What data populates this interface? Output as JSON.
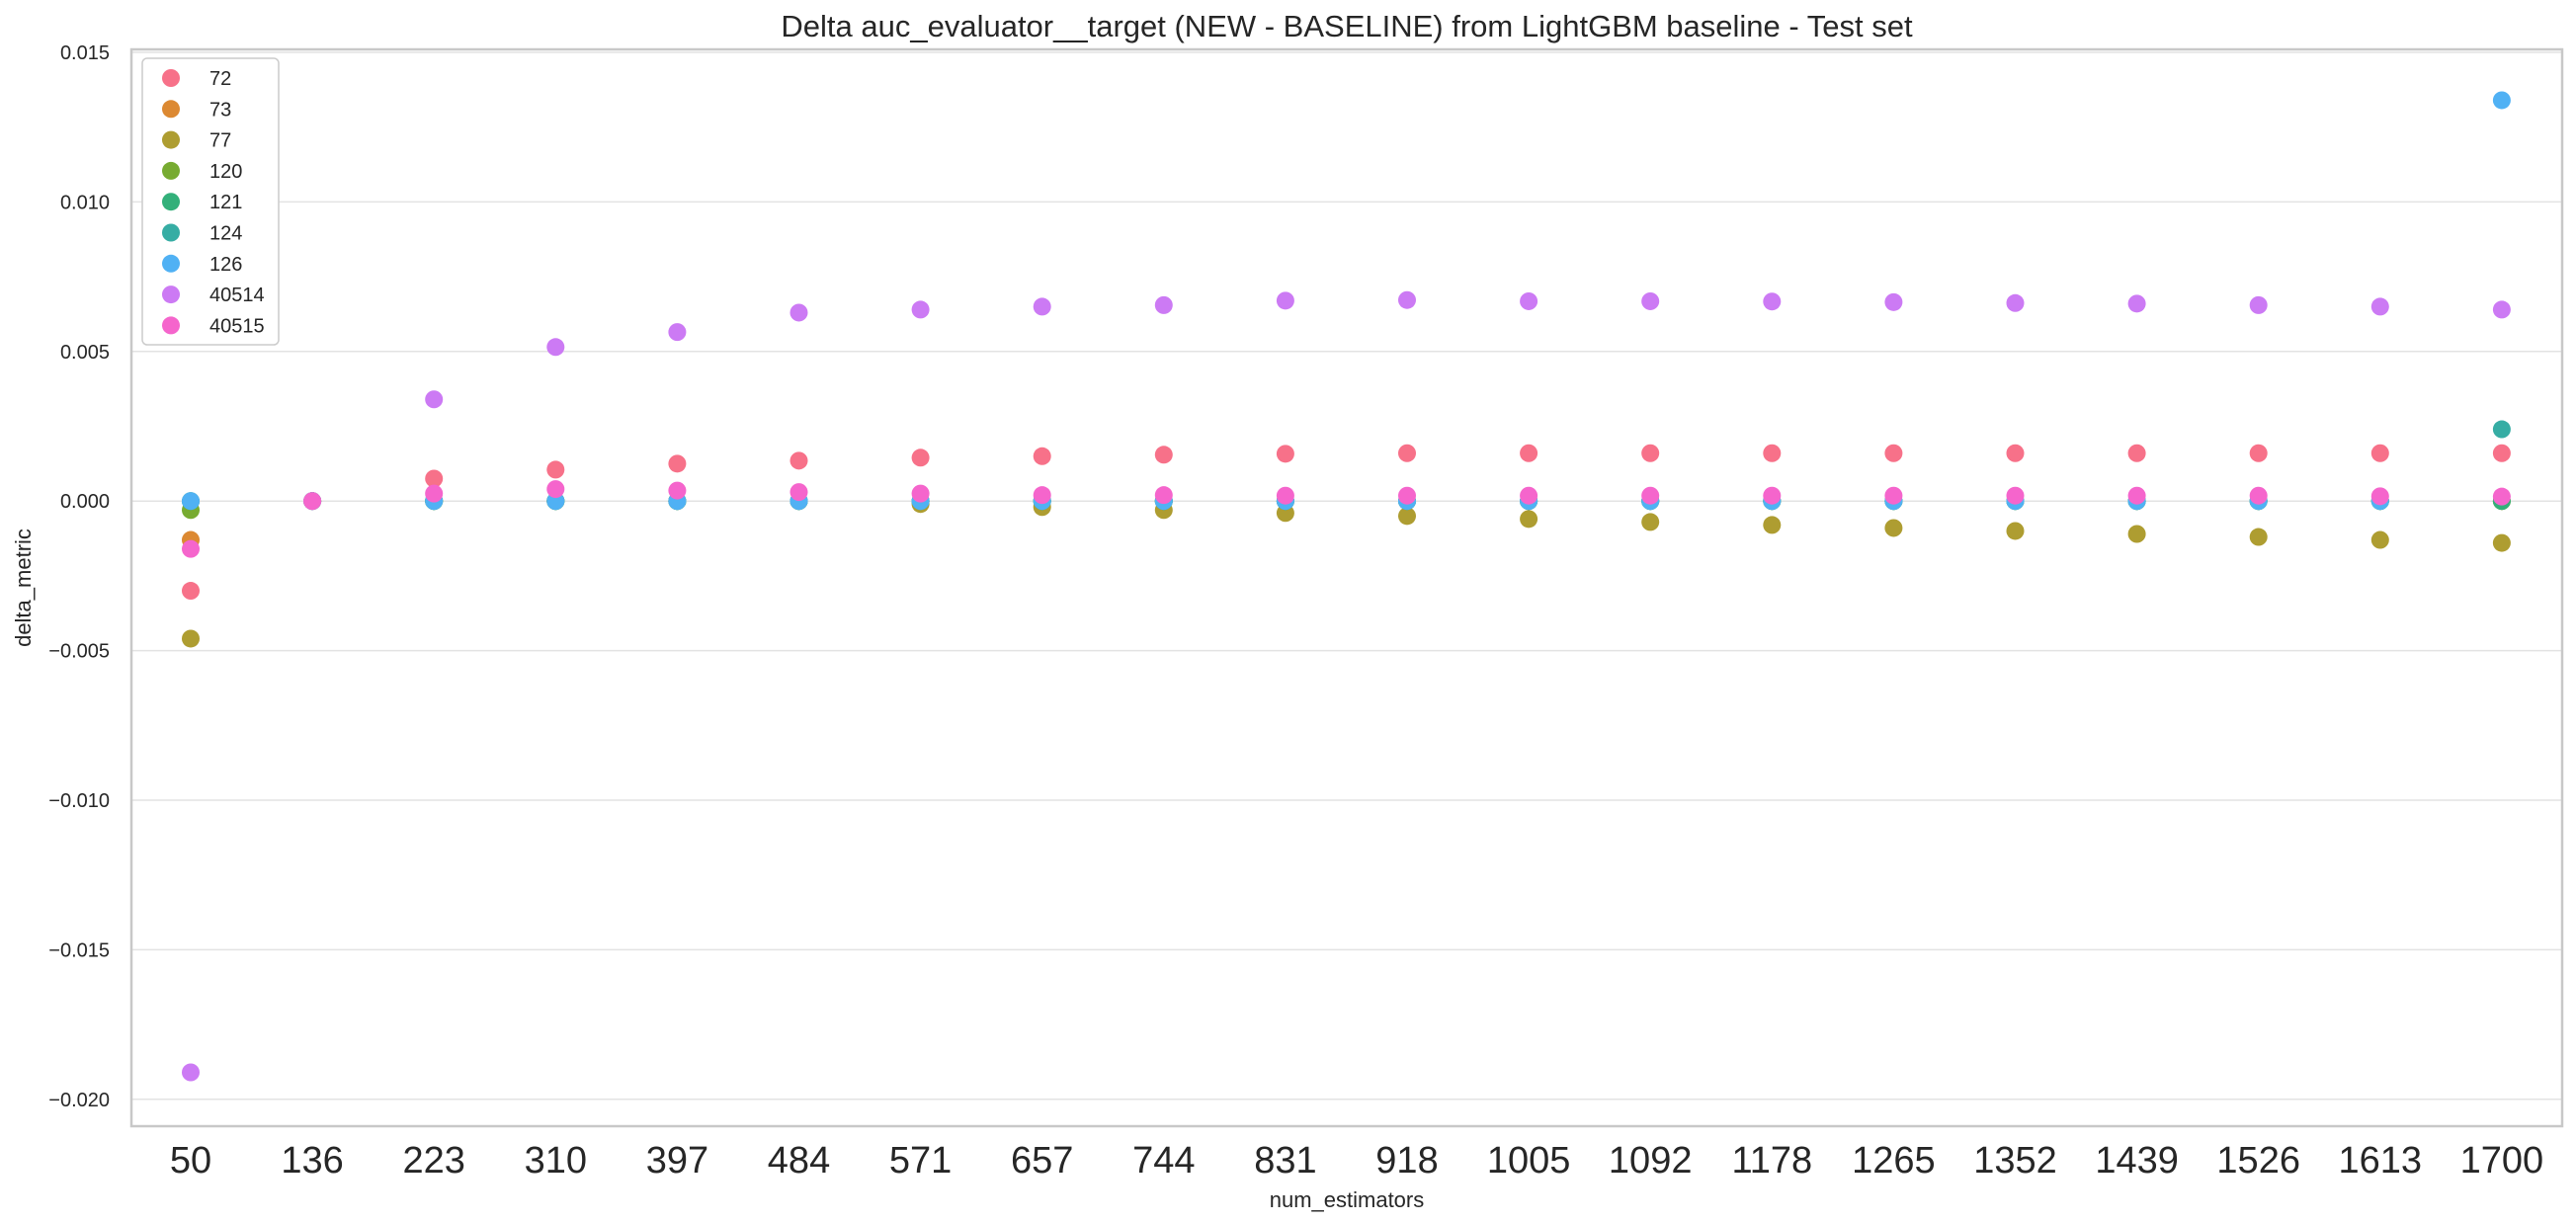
{
  "chart_data": {
    "type": "scatter",
    "title": "Delta auc_evaluator__target (NEW - BASELINE) from LightGBM baseline - Test set",
    "xlabel": "num_estimators",
    "ylabel": "delta_metric",
    "categories": [
      "50",
      "136",
      "223",
      "310",
      "397",
      "484",
      "571",
      "657",
      "744",
      "831",
      "918",
      "1005",
      "1092",
      "1178",
      "1265",
      "1352",
      "1439",
      "1526",
      "1613",
      "1700"
    ],
    "ylim": [
      -0.0209,
      0.0151
    ],
    "yticks": [
      0.015,
      0.01,
      0.005,
      0.0,
      -0.005,
      -0.01,
      -0.015,
      -0.02
    ],
    "ytick_labels": [
      "0.015",
      "0.010",
      "0.005",
      "0.000",
      "−0.005",
      "−0.010",
      "−0.015",
      "−0.020"
    ],
    "grid": "horizontal",
    "legend_position": "top-left",
    "series": [
      {
        "name": "72",
        "color": "#f77189",
        "values": [
          -0.003,
          0.0,
          0.00075,
          0.00105,
          0.00125,
          0.00135,
          0.00145,
          0.0015,
          0.00155,
          0.00158,
          0.0016,
          0.0016,
          0.0016,
          0.0016,
          0.0016,
          0.0016,
          0.0016,
          0.0016,
          0.0016,
          0.0016
        ]
      },
      {
        "name": "73",
        "color": "#dc8932",
        "values": [
          -0.0013,
          0.0,
          0.0,
          0.0,
          0.0,
          0.0,
          0.0,
          0.0,
          0.0,
          0.0,
          0.0,
          0.0,
          0.0,
          0.0,
          0.0,
          0.0,
          0.0,
          0.0,
          0.0,
          0.0
        ]
      },
      {
        "name": "77",
        "color": "#ae9d31",
        "values": [
          -0.0046,
          0.0,
          0.0,
          0.0,
          0.0,
          0.0,
          -0.0001,
          -0.0002,
          -0.0003,
          -0.0004,
          -0.0005,
          -0.0006,
          -0.0007,
          -0.0008,
          -0.0009,
          -0.001,
          -0.0011,
          -0.0012,
          -0.0013,
          -0.0014
        ]
      },
      {
        "name": "120",
        "color": "#77ab31",
        "values": [
          -0.0003,
          0.0,
          0.0,
          0.0,
          0.0,
          0.0,
          0.0,
          0.0,
          0.0,
          0.0,
          0.0,
          0.0,
          0.0,
          0.0,
          0.0,
          0.0,
          0.0,
          0.0,
          0.0,
          0.0
        ]
      },
      {
        "name": "121",
        "color": "#33b07a",
        "values": [
          0.0,
          0.0,
          0.0,
          0.0,
          0.0,
          0.0,
          0.0,
          0.0,
          0.0,
          0.0,
          0.0,
          0.0,
          0.0,
          0.0,
          0.0,
          0.0,
          0.0,
          0.0,
          0.0,
          0.0
        ]
      },
      {
        "name": "124",
        "color": "#36ada4",
        "values": [
          0.0,
          0.0,
          0.0,
          0.0,
          0.0,
          0.0,
          0.0,
          0.0,
          0.0,
          0.0,
          0.0,
          0.0,
          0.0,
          0.0,
          0.0,
          0.0,
          0.0,
          0.0,
          0.0,
          0.0024
        ]
      },
      {
        "name": "126",
        "color": "#50b1f4",
        "values": [
          0.0,
          0.0,
          0.0,
          0.0,
          0.0,
          0.0,
          0.0,
          0.0,
          0.0,
          0.0,
          0.0,
          0.0,
          0.0,
          0.0,
          0.0,
          0.0,
          0.0,
          0.0,
          0.0,
          0.0134
        ]
      },
      {
        "name": "40514",
        "color": "#cc7af4",
        "values": [
          -0.0191,
          0.0,
          0.0034,
          0.00515,
          0.00565,
          0.0063,
          0.0064,
          0.0065,
          0.00655,
          0.0067,
          0.00672,
          0.00668,
          0.00668,
          0.00667,
          0.00665,
          0.00662,
          0.0066,
          0.00655,
          0.0065,
          0.0064
        ]
      },
      {
        "name": "40515",
        "color": "#f565cc",
        "values": [
          -0.0016,
          0.0,
          0.00025,
          0.0004,
          0.00035,
          0.0003,
          0.00025,
          0.0002,
          0.0002,
          0.00018,
          0.00018,
          0.00018,
          0.00018,
          0.00018,
          0.00018,
          0.00018,
          0.00018,
          0.00018,
          0.00016,
          0.00015
        ]
      }
    ]
  }
}
